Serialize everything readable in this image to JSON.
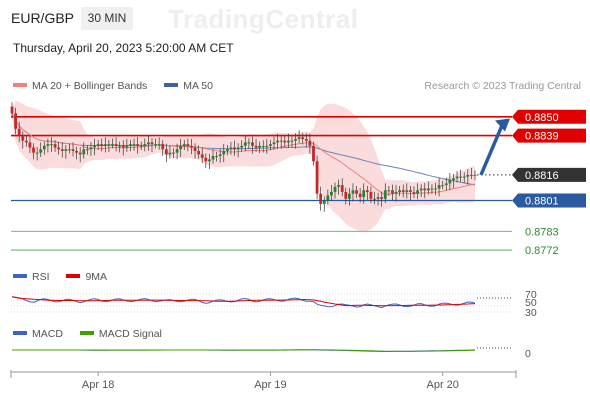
{
  "header": {
    "symbol": "EUR/GBP",
    "timeframe": "30 MIN",
    "datetime": "Thursday, April 20, 2023 5:20:00 AM CET",
    "watermark": "TradingCentral"
  },
  "legend": {
    "ma20": "MA 20 + Bollinger Bands",
    "ma50": "MA 50",
    "ma20_color": "#f08080",
    "ma50_color": "#3c64a0"
  },
  "credit": "Research © 2023 Trading Central",
  "chart_data": {
    "type": "candlestick",
    "price_axis": {
      "min": 0.8765,
      "max": 0.8861
    },
    "x_ticks": [
      {
        "label": "Apr 18",
        "index": 24
      },
      {
        "label": "Apr 19",
        "index": 72
      },
      {
        "label": "Apr 20",
        "index": 120
      }
    ],
    "bars": 130,
    "closes": [
      0.8852,
      0.8843,
      0.8839,
      0.8836,
      0.8835,
      0.8832,
      0.8829,
      0.8829,
      0.8831,
      0.8833,
      0.8834,
      0.8834,
      0.8832,
      0.8831,
      0.883,
      0.8831,
      0.8831,
      0.883,
      0.8829,
      0.8828,
      0.8831,
      0.8831,
      0.8832,
      0.8833,
      0.8834,
      0.8833,
      0.8834,
      0.8834,
      0.8834,
      0.8833,
      0.8833,
      0.8832,
      0.8833,
      0.8834,
      0.8834,
      0.8833,
      0.8833,
      0.8834,
      0.8835,
      0.8834,
      0.8834,
      0.8834,
      0.8831,
      0.8828,
      0.8829,
      0.8829,
      0.8831,
      0.8833,
      0.8834,
      0.8833,
      0.8832,
      0.883,
      0.8828,
      0.8826,
      0.8824,
      0.8825,
      0.8827,
      0.8827,
      0.8828,
      0.883,
      0.8831,
      0.8832,
      0.8831,
      0.8832,
      0.8833,
      0.8835,
      0.8835,
      0.8833,
      0.8832,
      0.8833,
      0.8833,
      0.8833,
      0.8834,
      0.8835,
      0.8836,
      0.8836,
      0.8835,
      0.8836,
      0.8836,
      0.8837,
      0.8838,
      0.8837,
      0.8836,
      0.8833,
      0.8824,
      0.8805,
      0.8799,
      0.8801,
      0.8804,
      0.8806,
      0.8809,
      0.881,
      0.8806,
      0.8802,
      0.8805,
      0.8807,
      0.8805,
      0.8803,
      0.8807,
      0.8806,
      0.8802,
      0.8802,
      0.8803,
      0.8802,
      0.8807,
      0.8807,
      0.8805,
      0.8806,
      0.8807,
      0.8806,
      0.8807,
      0.8806,
      0.8805,
      0.8807,
      0.8808,
      0.8807,
      0.8808,
      0.8808,
      0.8808,
      0.881,
      0.881,
      0.8811,
      0.8813,
      0.8814,
      0.8815,
      0.8815,
      0.8815,
      0.8816,
      0.8816,
      0.8816
    ],
    "levels": [
      {
        "label": "0.8850",
        "value": 0.885,
        "kind": "resistance",
        "color": "#e00000"
      },
      {
        "label": "0.8839",
        "value": 0.8839,
        "kind": "resistance",
        "color": "#e00000"
      },
      {
        "label": "0.8816",
        "value": 0.8816,
        "kind": "last",
        "color": "#333333"
      },
      {
        "label": "0.8801",
        "value": 0.8801,
        "kind": "pivot",
        "color": "#2a5aa0"
      },
      {
        "label": "0.8783",
        "value": 0.8783,
        "kind": "support",
        "color": "#40a040"
      },
      {
        "label": "0.8772",
        "value": 0.8772,
        "kind": "support",
        "color": "#40a040"
      }
    ],
    "forecast_arrow": {
      "from": 0.8816,
      "to": 0.8849,
      "direction": "up",
      "color": "#2a5aa0"
    },
    "rsi": {
      "legend": [
        "RSI",
        "9MA"
      ],
      "levels": [
        "70",
        "50",
        "30"
      ],
      "colors": [
        "#3c64c8",
        "#e00000"
      ]
    },
    "macd": {
      "legend": [
        "MACD",
        "MACD Signal"
      ],
      "zero_label": "0",
      "colors": [
        "#3c64c8",
        "#40a000"
      ]
    }
  }
}
